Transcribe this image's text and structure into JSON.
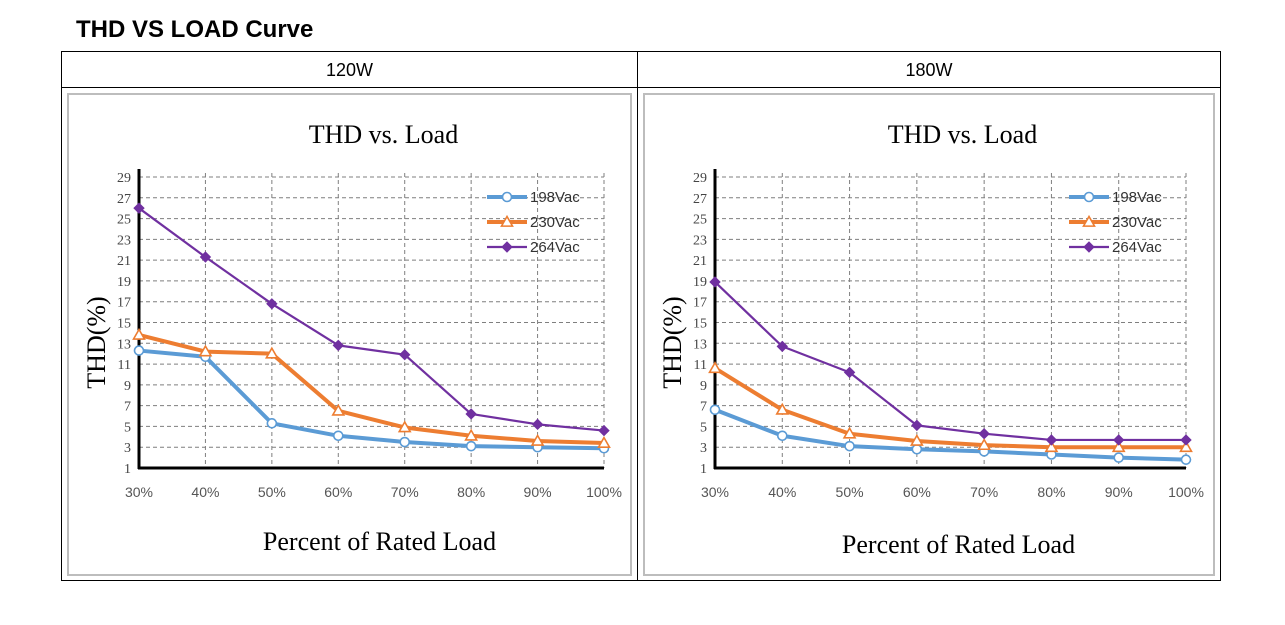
{
  "page": {
    "title": "THD VS LOAD Curve"
  },
  "columns": [
    {
      "label": "120W"
    },
    {
      "label": "180W"
    }
  ],
  "chart_data": [
    {
      "type": "line",
      "title": "THD vs. Load",
      "xlabel": "Percent of Rated Load",
      "ylabel": "THD(%)",
      "categories": [
        "30%",
        "40%",
        "50%",
        "60%",
        "70%",
        "80%",
        "90%",
        "100%"
      ],
      "ylim": [
        1,
        29
      ],
      "yticks": [
        1,
        3,
        5,
        7,
        9,
        11,
        13,
        15,
        17,
        19,
        21,
        23,
        25,
        27,
        29
      ],
      "grid": true,
      "legend": "top-right",
      "series": [
        {
          "name": "198Vac",
          "color": "#5b9bd5",
          "marker": "circle",
          "values": [
            12.3,
            11.7,
            5.3,
            4.1,
            3.5,
            3.1,
            3.0,
            2.9
          ]
        },
        {
          "name": "230Vac",
          "color": "#ed7d31",
          "marker": "triangle",
          "values": [
            13.8,
            12.2,
            12.0,
            6.5,
            4.9,
            4.1,
            3.6,
            3.4
          ]
        },
        {
          "name": "264Vac",
          "color": "#7030a0",
          "marker": "diamond",
          "values": [
            26.0,
            21.3,
            16.8,
            12.8,
            11.9,
            6.2,
            5.2,
            4.6
          ]
        }
      ]
    },
    {
      "type": "line",
      "title": "THD vs. Load",
      "xlabel": "Percent of Rated Load",
      "ylabel": "THD(%)",
      "categories": [
        "30%",
        "40%",
        "50%",
        "60%",
        "70%",
        "80%",
        "90%",
        "100%"
      ],
      "ylim": [
        1,
        29
      ],
      "yticks": [
        1,
        3,
        5,
        7,
        9,
        11,
        13,
        15,
        17,
        19,
        21,
        23,
        25,
        27,
        29
      ],
      "grid": true,
      "legend": "top-right",
      "series": [
        {
          "name": "198Vac",
          "color": "#5b9bd5",
          "marker": "circle",
          "values": [
            6.6,
            4.1,
            3.1,
            2.8,
            2.6,
            2.3,
            2.0,
            1.8
          ]
        },
        {
          "name": "230Vac",
          "color": "#ed7d31",
          "marker": "triangle",
          "values": [
            10.6,
            6.6,
            4.3,
            3.6,
            3.2,
            3.0,
            3.0,
            3.0
          ]
        },
        {
          "name": "264Vac",
          "color": "#7030a0",
          "marker": "diamond",
          "values": [
            18.9,
            12.7,
            10.2,
            5.1,
            4.3,
            3.7,
            3.7,
            3.7
          ]
        }
      ]
    }
  ]
}
